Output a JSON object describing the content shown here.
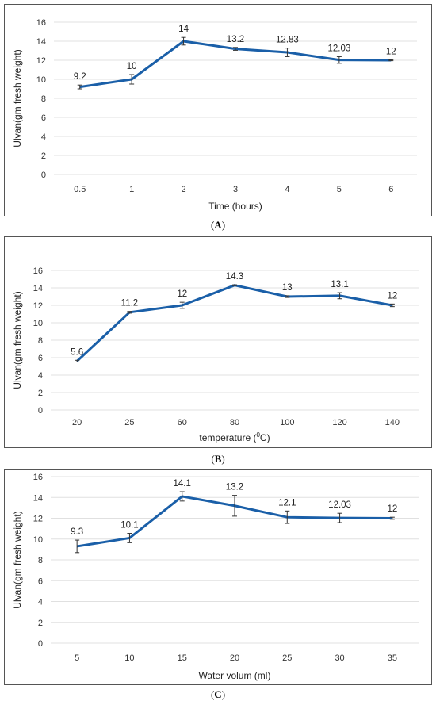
{
  "chart_data": [
    {
      "type": "line",
      "id": "A",
      "caption": "A",
      "x": [
        "0.5",
        "1",
        "2",
        "3",
        "4",
        "5",
        "6"
      ],
      "values": [
        9.2,
        10,
        14,
        13.2,
        12.83,
        12.03,
        12
      ],
      "errors": [
        0.2,
        0.5,
        0.4,
        0.15,
        0.45,
        0.35,
        0.05
      ],
      "data_labels": [
        "9.2",
        "10",
        "14",
        "13.2",
        "12.83",
        "12.03",
        "12"
      ],
      "xlabel": "Time (hours)",
      "ylabel": "Ulvan(gm fresh weight)",
      "ylim": [
        0,
        16
      ],
      "yticks": [
        "0",
        "2",
        "4",
        "6",
        "8",
        "10",
        "12",
        "14",
        "16"
      ],
      "grid": true,
      "color": "#1a5fa8"
    },
    {
      "type": "line",
      "id": "B",
      "caption": "B",
      "x": [
        "20",
        "25",
        "60",
        "80",
        "100",
        "120",
        "140"
      ],
      "values": [
        5.6,
        11.2,
        12,
        14.3,
        13,
        13.1,
        12
      ],
      "errors": [
        0.1,
        0.1,
        0.35,
        0.05,
        0.1,
        0.35,
        0.15
      ],
      "data_labels": [
        "5.6",
        "11.2",
        "12",
        "14.3",
        "13",
        "13.1",
        "12"
      ],
      "xlabel_prefix": "temperature (",
      "xlabel_sup": "0",
      "xlabel_suffix": "C)",
      "ylabel": "Ulvan(gm fresh weight)",
      "ylim": [
        0,
        16
      ],
      "yticks": [
        "0",
        "2",
        "4",
        "6",
        "8",
        "10",
        "12",
        "14",
        "16"
      ],
      "grid": true,
      "color": "#1a5fa8"
    },
    {
      "type": "line",
      "id": "C",
      "caption": "C",
      "x": [
        "5",
        "10",
        "15",
        "20",
        "25",
        "30",
        "35"
      ],
      "values": [
        9.3,
        10.1,
        14.1,
        13.2,
        12.1,
        12.03,
        12
      ],
      "errors": [
        0.6,
        0.45,
        0.45,
        1.0,
        0.6,
        0.45,
        0.1
      ],
      "data_labels": [
        "9.3",
        "10.1",
        "14.1",
        "13.2",
        "12.1",
        "12.03",
        "12"
      ],
      "xlabel": "Water volum (ml)",
      "ylabel": "Ulvan(gm fresh weight)",
      "ylim": [
        0,
        16
      ],
      "yticks": [
        "0",
        "2",
        "4",
        "6",
        "8",
        "10",
        "12",
        "14",
        "16"
      ],
      "grid": true,
      "color": "#1a5fa8"
    }
  ]
}
